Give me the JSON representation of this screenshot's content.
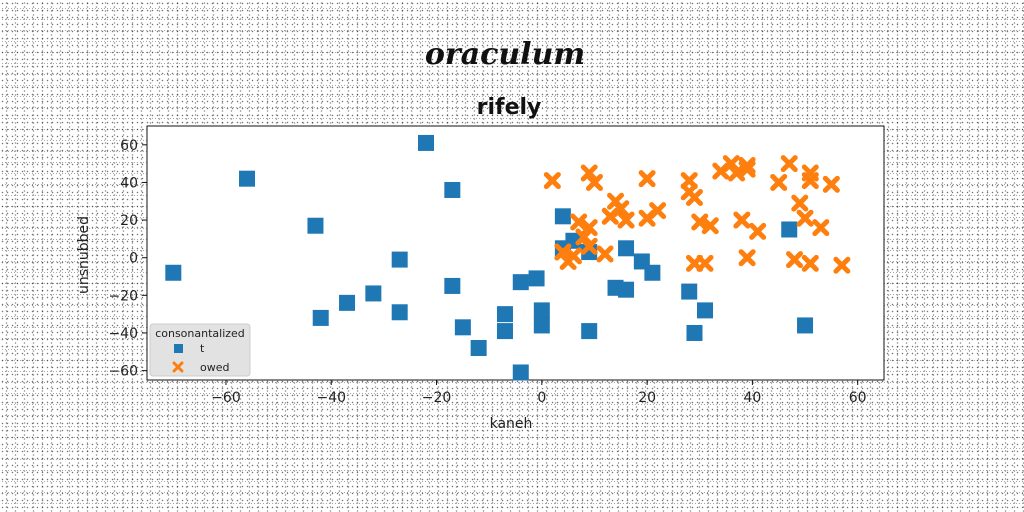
{
  "chart_data": {
    "type": "scatter",
    "suptitle": "oraculum",
    "title": "rifely",
    "xlabel": "kaneh",
    "ylabel": "unsnubbed",
    "xlim": [
      -75,
      65
    ],
    "ylim": [
      -65,
      70
    ],
    "xticks": [
      -60,
      -40,
      -20,
      0,
      20,
      40,
      60
    ],
    "yticks": [
      -60,
      -40,
      -20,
      0,
      20,
      40,
      60
    ],
    "grid": false,
    "legend": {
      "title": "consonantalized",
      "position": "lower-left"
    },
    "series": [
      {
        "name": "t",
        "marker": "square",
        "color": "#1f77b4",
        "points": [
          [
            -22,
            61
          ],
          [
            -56,
            42
          ],
          [
            -17,
            36
          ],
          [
            -43,
            17
          ],
          [
            -70,
            -8
          ],
          [
            -27,
            -1
          ],
          [
            -17,
            -15
          ],
          [
            -32,
            -19
          ],
          [
            -37,
            -24
          ],
          [
            -42,
            -32
          ],
          [
            -27,
            -29
          ],
          [
            -15,
            -37
          ],
          [
            -12,
            -48
          ],
          [
            -7,
            -30
          ],
          [
            -7,
            -39
          ],
          [
            -4,
            -13
          ],
          [
            -1,
            -11
          ],
          [
            0,
            -28
          ],
          [
            0,
            -36
          ],
          [
            -4,
            -61
          ],
          [
            4,
            22
          ],
          [
            4,
            5
          ],
          [
            6,
            9
          ],
          [
            9,
            3
          ],
          [
            9,
            -39
          ],
          [
            14,
            -16
          ],
          [
            16,
            -17
          ],
          [
            16,
            5
          ],
          [
            19,
            -2
          ],
          [
            21,
            -8
          ],
          [
            28,
            -18
          ],
          [
            29,
            -40
          ],
          [
            31,
            -28
          ],
          [
            47,
            15
          ],
          [
            50,
            -36
          ]
        ]
      },
      {
        "name": "owed",
        "marker": "x",
        "color": "#ff7f0e",
        "points": [
          [
            2,
            41
          ],
          [
            9,
            45
          ],
          [
            10,
            40
          ],
          [
            4,
            3
          ],
          [
            5,
            -2
          ],
          [
            7,
            19
          ],
          [
            6,
            1
          ],
          [
            8,
            11
          ],
          [
            9,
            6
          ],
          [
            9,
            16
          ],
          [
            12,
            2
          ],
          [
            13,
            22
          ],
          [
            14,
            30
          ],
          [
            15,
            26
          ],
          [
            16,
            20
          ],
          [
            20,
            42
          ],
          [
            20,
            21
          ],
          [
            22,
            25
          ],
          [
            28,
            41
          ],
          [
            28,
            35
          ],
          [
            29,
            32
          ],
          [
            29,
            -3
          ],
          [
            30,
            19
          ],
          [
            31,
            -3
          ],
          [
            32,
            17
          ],
          [
            34,
            46
          ],
          [
            36,
            50
          ],
          [
            37,
            45
          ],
          [
            38,
            20
          ],
          [
            39,
            49
          ],
          [
            39,
            47
          ],
          [
            39,
            0
          ],
          [
            41,
            14
          ],
          [
            45,
            40
          ],
          [
            47,
            50
          ],
          [
            48,
            -1
          ],
          [
            49,
            29
          ],
          [
            50,
            21
          ],
          [
            51,
            45
          ],
          [
            51,
            41
          ],
          [
            51,
            -3
          ],
          [
            53,
            16
          ],
          [
            55,
            39
          ],
          [
            57,
            -4
          ]
        ]
      }
    ]
  }
}
